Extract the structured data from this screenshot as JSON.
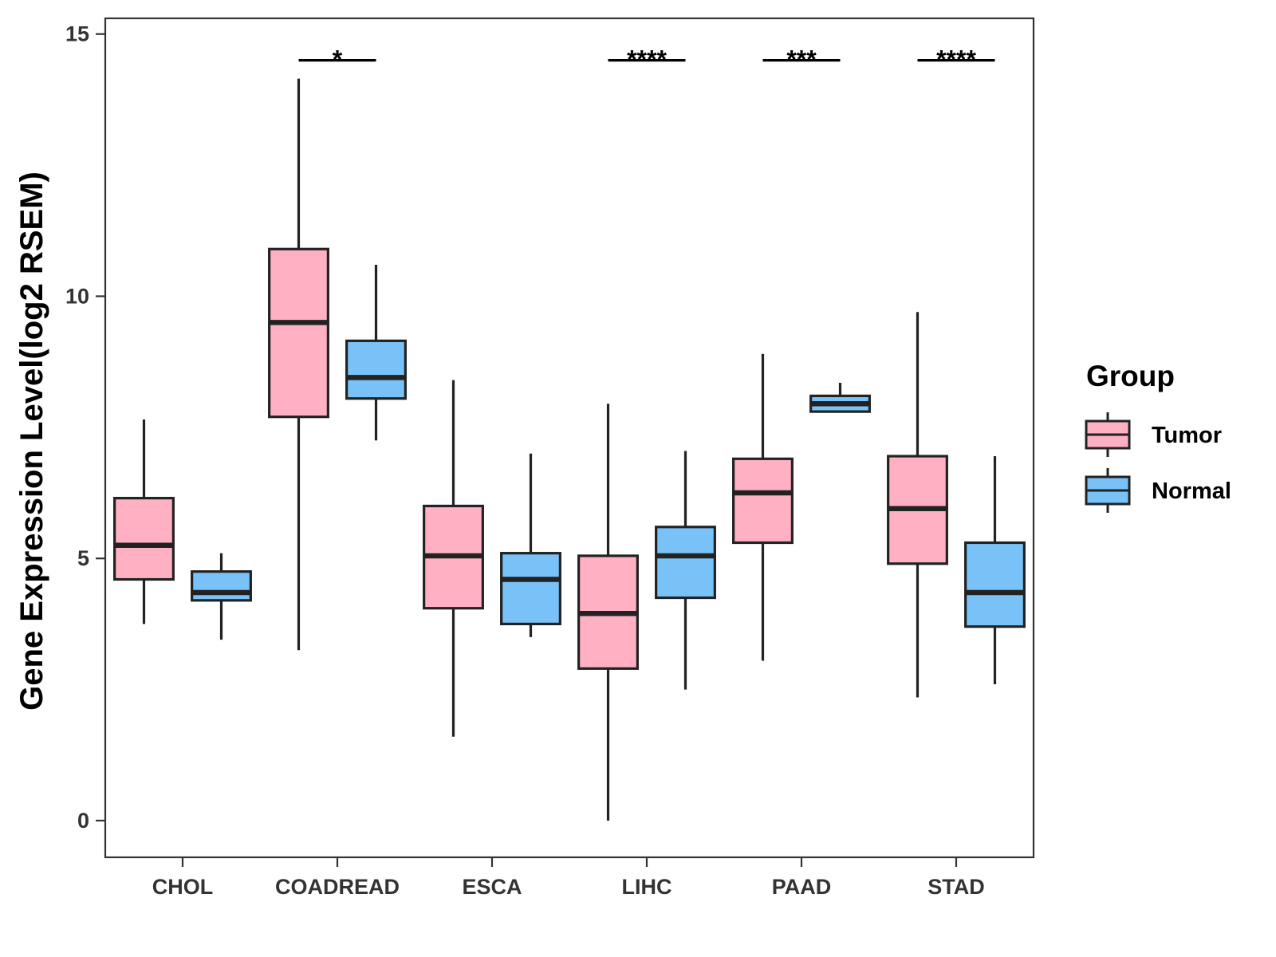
{
  "chart_data": {
    "type": "boxplot",
    "title": "",
    "xlabel": "",
    "ylabel": "Gene Expression Level(log2 RSEM)",
    "ylim": [
      -0.7,
      15.3
    ],
    "yticks": [
      0,
      5,
      10,
      15
    ],
    "grid": false,
    "legend": {
      "title": "Group",
      "position": "right"
    },
    "categories": [
      "CHOL",
      "COADREAD",
      "ESCA",
      "LIHC",
      "PAAD",
      "STAD"
    ],
    "series": [
      {
        "name": "Tumor",
        "color": "#FFB1C3",
        "boxes": [
          {
            "min": 3.75,
            "q1": 4.6,
            "median": 5.25,
            "q3": 6.15,
            "max": 7.65
          },
          {
            "min": 3.25,
            "q1": 7.7,
            "median": 9.5,
            "q3": 10.9,
            "max": 14.15
          },
          {
            "min": 1.6,
            "q1": 4.05,
            "median": 5.05,
            "q3": 6.0,
            "max": 8.4
          },
          {
            "min": 0.0,
            "q1": 2.9,
            "median": 3.95,
            "q3": 5.05,
            "max": 7.95
          },
          {
            "min": 3.05,
            "q1": 5.3,
            "median": 6.25,
            "q3": 6.9,
            "max": 8.9
          },
          {
            "min": 2.35,
            "q1": 4.9,
            "median": 5.95,
            "q3": 6.95,
            "max": 9.7
          }
        ]
      },
      {
        "name": "Normal",
        "color": "#78C2F8",
        "boxes": [
          {
            "min": 3.45,
            "q1": 4.2,
            "median": 4.35,
            "q3": 4.75,
            "max": 5.1
          },
          {
            "min": 7.25,
            "q1": 8.05,
            "median": 8.45,
            "q3": 9.15,
            "max": 10.6
          },
          {
            "min": 3.5,
            "q1": 3.75,
            "median": 4.6,
            "q3": 5.1,
            "max": 7.0
          },
          {
            "min": 2.5,
            "q1": 4.25,
            "median": 5.05,
            "q3": 5.6,
            "max": 7.05
          },
          {
            "min": 7.8,
            "q1": 7.8,
            "median": 7.95,
            "q3": 8.1,
            "max": 8.35
          },
          {
            "min": 2.6,
            "q1": 3.7,
            "median": 4.35,
            "q3": 5.3,
            "max": 6.95
          }
        ]
      }
    ],
    "annotations": [
      {
        "category": "CHOL",
        "label": ""
      },
      {
        "category": "COADREAD",
        "label": "*"
      },
      {
        "category": "ESCA",
        "label": ""
      },
      {
        "category": "LIHC",
        "label": "****"
      },
      {
        "category": "PAAD",
        "label": "***"
      },
      {
        "category": "STAD",
        "label": "****"
      }
    ],
    "annotation_y": 14.5
  }
}
